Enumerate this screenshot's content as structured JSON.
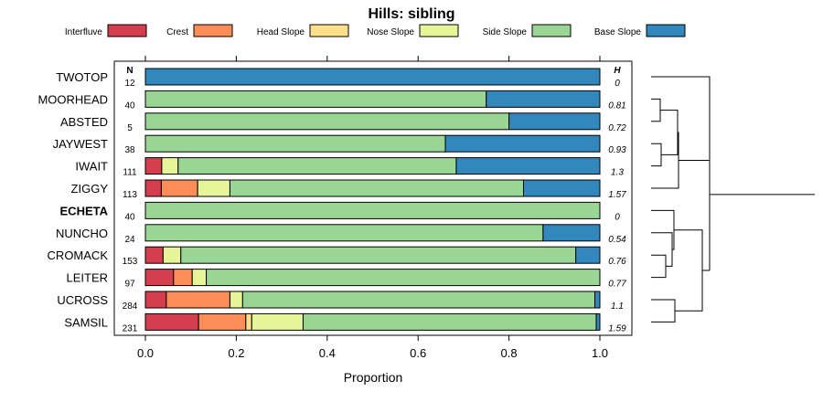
{
  "chart_data": {
    "type": "bar",
    "orientation": "horizontal-stacked",
    "title": "Hills: sibling",
    "xlabel": "Proportion",
    "xlim": [
      0,
      1
    ],
    "xticks": [
      "0.0",
      "0.2",
      "0.4",
      "0.6",
      "0.8",
      "1.0"
    ],
    "n_header": "N",
    "h_header": "H",
    "legend": [
      {
        "name": "Interfluve",
        "color": "#d53e4f"
      },
      {
        "name": "Crest",
        "color": "#fc8d59"
      },
      {
        "name": "Head Slope",
        "color": "#fee08b"
      },
      {
        "name": "Nose Slope",
        "color": "#e6f598"
      },
      {
        "name": "Side Slope",
        "color": "#99d594"
      },
      {
        "name": "Base Slope",
        "color": "#3288bd"
      }
    ],
    "rows": [
      {
        "name": "TWOTOP",
        "n": "12",
        "h": "0",
        "bold": false,
        "values": [
          0,
          0,
          0,
          0,
          0,
          1.0
        ]
      },
      {
        "name": "MOORHEAD",
        "n": "40",
        "h": "0.81",
        "bold": false,
        "values": [
          0,
          0,
          0,
          0,
          0.75,
          0.25
        ]
      },
      {
        "name": "ABSTED",
        "n": "5",
        "h": "0.72",
        "bold": false,
        "values": [
          0,
          0,
          0,
          0,
          0.8,
          0.2
        ]
      },
      {
        "name": "JAYWEST",
        "n": "38",
        "h": "0.93",
        "bold": false,
        "values": [
          0,
          0,
          0,
          0,
          0.66,
          0.34
        ]
      },
      {
        "name": "IWAIT",
        "n": "111",
        "h": "1.3",
        "bold": false,
        "values": [
          0.036,
          0,
          0,
          0.036,
          0.612,
          0.316
        ]
      },
      {
        "name": "ZIGGY",
        "n": "113",
        "h": "1.57",
        "bold": false,
        "values": [
          0.035,
          0.08,
          0,
          0.071,
          0.646,
          0.168
        ]
      },
      {
        "name": "ECHETA",
        "n": "40",
        "h": "0",
        "bold": true,
        "values": [
          0,
          0,
          0,
          0,
          1.0,
          0
        ]
      },
      {
        "name": "NUNCHO",
        "n": "24",
        "h": "0.54",
        "bold": false,
        "values": [
          0,
          0,
          0,
          0,
          0.875,
          0.125
        ]
      },
      {
        "name": "CROMACK",
        "n": "153",
        "h": "0.76",
        "bold": false,
        "values": [
          0.039,
          0,
          0,
          0.039,
          0.869,
          0.053
        ]
      },
      {
        "name": "LEITER",
        "n": "97",
        "h": "0.77",
        "bold": false,
        "values": [
          0.062,
          0.041,
          0,
          0.031,
          0.866,
          0
        ]
      },
      {
        "name": "UCROSS",
        "n": "284",
        "h": "1.1",
        "bold": false,
        "values": [
          0.046,
          0.14,
          0,
          0.028,
          0.775,
          0.011
        ]
      },
      {
        "name": "SAMSIL",
        "n": "231",
        "h": "1.59",
        "bold": false,
        "values": [
          0.117,
          0.104,
          0.013,
          0.113,
          0.645,
          0.008
        ]
      }
    ]
  }
}
